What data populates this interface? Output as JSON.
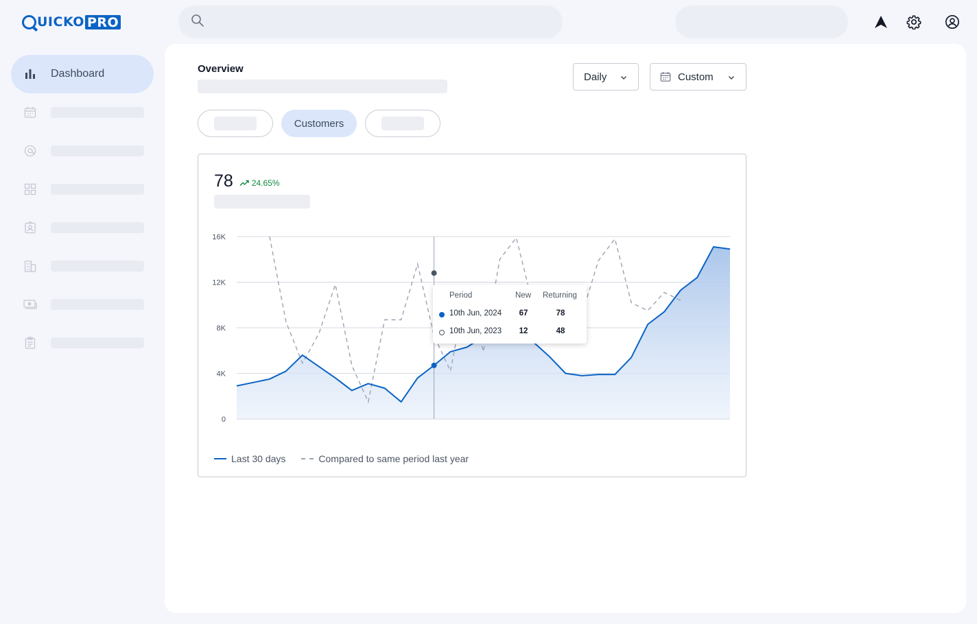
{
  "brand": {
    "name_part1": "QUICKO",
    "name_part2": "PRO"
  },
  "search": {
    "placeholder": ""
  },
  "sidebar": {
    "items": [
      {
        "label": "Dashboard",
        "icon": "bar-chart-icon",
        "active": true
      },
      {
        "label": "",
        "icon": "calendar-icon"
      },
      {
        "label": "",
        "icon": "at-sign-icon"
      },
      {
        "label": "",
        "icon": "grid-icon"
      },
      {
        "label": "",
        "icon": "contact-card-icon"
      },
      {
        "label": "",
        "icon": "building-icon"
      },
      {
        "label": "",
        "icon": "money-icon"
      },
      {
        "label": "",
        "icon": "clipboard-icon"
      }
    ]
  },
  "overview": {
    "title": "Overview",
    "period_select": "Daily",
    "range_select": "Custom",
    "tabs": [
      "",
      "Customers",
      ""
    ]
  },
  "metric": {
    "value": "78",
    "change": "24.65%"
  },
  "tooltip": {
    "headers": {
      "period": "Period",
      "new": "New",
      "returning": "Returning"
    },
    "rows": [
      {
        "period": "10th Jun, 2024",
        "new": "67",
        "returning": "78"
      },
      {
        "period": "10th Jun, 2023",
        "new": "12",
        "returning": "48"
      }
    ]
  },
  "chart_data": {
    "type": "line",
    "y_ticks": [
      "16K",
      "12K",
      "8K",
      "4K",
      "0"
    ],
    "ylim": [
      0,
      16000
    ],
    "x_count": 32,
    "series": [
      {
        "name": "Last 30 days",
        "style": "solid-area",
        "color": "#0b63c4",
        "values": [
          2900,
          3200,
          3500,
          4200,
          5600,
          4600,
          3600,
          2500,
          3100,
          2700,
          1500,
          3600,
          4700,
          5900,
          6300,
          7200,
          7300,
          6900,
          6800,
          5500,
          4000,
          3800,
          3900,
          3900,
          5400,
          8300,
          9400,
          11300,
          12400,
          15100,
          14900
        ]
      },
      {
        "name": "Compared to same period last year",
        "style": "dashed",
        "color": "#9aa3b3",
        "values": [
          null,
          null,
          16000,
          8500,
          4900,
          7500,
          11800,
          4700,
          1500,
          8700,
          8700,
          13600,
          7300,
          4200,
          11800,
          5900,
          14000,
          15900,
          10100,
          9600,
          9100,
          9200,
          13900,
          15800,
          10200,
          9500,
          11100,
          10400
        ]
      }
    ],
    "highlight_index": 12
  },
  "legend": {
    "series1": "Last 30 days",
    "series2": "Compared to same period last year"
  }
}
